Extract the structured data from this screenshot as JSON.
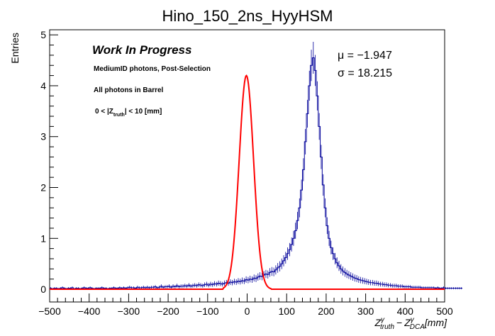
{
  "chart_data": {
    "type": "line",
    "title": "Hino_150_2ns_HyyHSM",
    "ylabel": "Entries",
    "xlabel_parts": {
      "z": "Z",
      "sub_truth": "truth",
      "sub_dca": "DCA",
      "sup": "γ",
      "minus": "−",
      "unit": "[mm]"
    },
    "xlim": [
      -500,
      500
    ],
    "ylim": [
      -0.25,
      5.1
    ],
    "x_ticks": [
      -500,
      -400,
      -300,
      -200,
      -100,
      0,
      100,
      200,
      300,
      400,
      500
    ],
    "x_tick_labels": [
      "−500",
      "−400",
      "−300",
      "−200",
      "−100",
      "0",
      "100",
      "200",
      "300",
      "400",
      "500"
    ],
    "y_ticks": [
      0,
      1,
      2,
      3,
      4,
      5
    ],
    "y_tick_labels": [
      "0",
      "1",
      "2",
      "3",
      "4",
      "5"
    ],
    "stats": {
      "mu_label": "μ = −1.947",
      "sigma_label": "σ = 18.215",
      "mu": -1.947,
      "sigma": 18.215
    },
    "annotations": {
      "wip": "Work In Progress",
      "line1": "MediumID photons, Post-Selection",
      "line2": "All photons in Barrel",
      "line3_a": "0 < |Z",
      "line3_sub": "truth",
      "line3_b": "| < 10 [mm]"
    },
    "series": [
      {
        "name": "histogram",
        "style": "step",
        "color": "#000099",
        "bin_width": 5,
        "x_start": -500,
        "values": [
          0.02,
          0.01,
          0.02,
          0.02,
          0.01,
          0.02,
          0.03,
          0.02,
          0.01,
          0.02,
          0.02,
          0.03,
          0.01,
          0.02,
          0.02,
          0.01,
          0.02,
          0.03,
          0.02,
          0.02,
          0.03,
          0.02,
          0.01,
          0.02,
          0.02,
          0.02,
          0.03,
          0.02,
          0.02,
          0.01,
          0.02,
          0.02,
          0.03,
          0.02,
          0.02,
          0.03,
          0.02,
          0.03,
          0.02,
          0.03,
          0.04,
          0.03,
          0.03,
          0.02,
          0.04,
          0.03,
          0.03,
          0.04,
          0.03,
          0.04,
          0.03,
          0.04,
          0.04,
          0.05,
          0.03,
          0.04,
          0.06,
          0.04,
          0.05,
          0.05,
          0.06,
          0.04,
          0.06,
          0.05,
          0.07,
          0.05,
          0.06,
          0.06,
          0.07,
          0.06,
          0.08,
          0.06,
          0.07,
          0.08,
          0.07,
          0.09,
          0.08,
          0.07,
          0.09,
          0.1,
          0.08,
          0.1,
          0.09,
          0.11,
          0.1,
          0.12,
          0.11,
          0.1,
          0.12,
          0.13,
          0.12,
          0.14,
          0.13,
          0.15,
          0.14,
          0.16,
          0.15,
          0.17,
          0.16,
          0.19,
          0.18,
          0.2,
          0.19,
          0.22,
          0.21,
          0.24,
          0.26,
          0.25,
          0.28,
          0.3,
          0.29,
          0.33,
          0.35,
          0.34,
          0.38,
          0.42,
          0.45,
          0.5,
          0.56,
          0.62,
          0.7,
          0.78,
          0.88,
          1.0,
          1.15,
          1.35,
          1.6,
          1.95,
          2.35,
          2.9,
          3.45,
          4.0,
          4.4,
          4.55,
          4.3,
          3.8,
          3.2,
          2.6,
          2.05,
          1.6,
          1.25,
          1.0,
          0.82,
          0.7,
          0.6,
          0.52,
          0.46,
          0.4,
          0.36,
          0.33,
          0.3,
          0.28,
          0.26,
          0.24,
          0.22,
          0.21,
          0.19,
          0.18,
          0.17,
          0.16,
          0.15,
          0.14,
          0.13,
          0.13,
          0.12,
          0.12,
          0.11,
          0.1,
          0.1,
          0.09,
          0.09,
          0.08,
          0.08,
          0.07,
          0.07,
          0.07,
          0.06,
          0.06,
          0.06,
          0.05,
          0.05,
          0.05,
          0.05,
          0.04,
          0.04,
          0.04,
          0.04,
          0.04,
          0.03,
          0.03,
          0.03,
          0.03,
          0.03,
          0.03,
          0.03,
          0.02,
          0.03,
          0.02,
          0.02,
          0.03,
          0.02,
          0.02,
          0.02,
          0.02,
          0.02,
          0.02,
          0.02,
          0.02,
          0.02
        ]
      },
      {
        "name": "gaussian fit",
        "style": "curve",
        "color": "#ff0000",
        "amplitude": 4.2,
        "mu": -1.947,
        "sigma": 18.215,
        "fit_range": [
          -60,
          60
        ]
      }
    ]
  }
}
